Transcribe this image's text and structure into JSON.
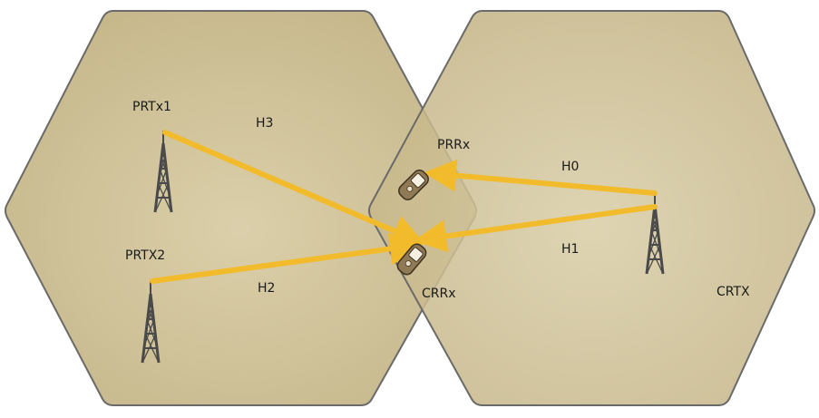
{
  "labels": {
    "prtx1": "PRTx1",
    "prtx2": "PRTX2",
    "h3": "H3",
    "h2": "H2",
    "prrx": "PRRx",
    "crrx": "CRRx",
    "h0": "H0",
    "h1": "H1",
    "crtx": "CRTX"
  },
  "colors": {
    "cell_fill": "#cbbc8e",
    "cell_stroke": "#6a6a6a",
    "link": "#f2bb2c",
    "tower": "#4a4a4a",
    "phone": "#8f7a55"
  }
}
